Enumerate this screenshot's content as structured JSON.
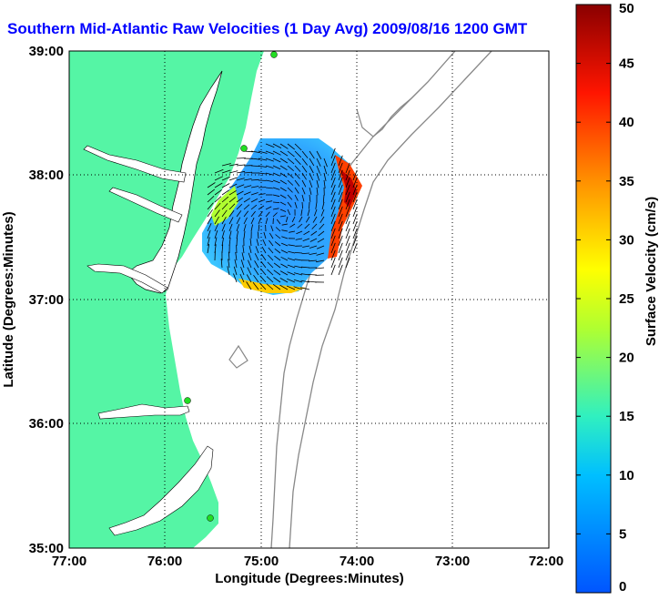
{
  "title": "Southern Mid-Atlantic Raw Velocities (1 Day Avg) 2009/08/16 1200 GMT",
  "x_axis": {
    "label": "Longitude (Degrees:Minutes)",
    "ticks": [
      "77:00",
      "76:00",
      "75:00",
      "74:00",
      "73:00",
      "72:00"
    ]
  },
  "y_axis": {
    "label": "Latitude (Degrees:Minutes)",
    "ticks": [
      "39:00",
      "38:00",
      "37:00",
      "36:00",
      "35:00"
    ]
  },
  "colorbar": {
    "label": "Surface Velocity (cm/s)",
    "ticks": [
      "0",
      "5",
      "10",
      "15",
      "20",
      "25",
      "30",
      "35",
      "40",
      "45",
      "50"
    ],
    "min": 0,
    "max": 50
  },
  "colors": {
    "land": "#55f5a5",
    "title": "#0000ff",
    "station": "#22dd22"
  }
}
